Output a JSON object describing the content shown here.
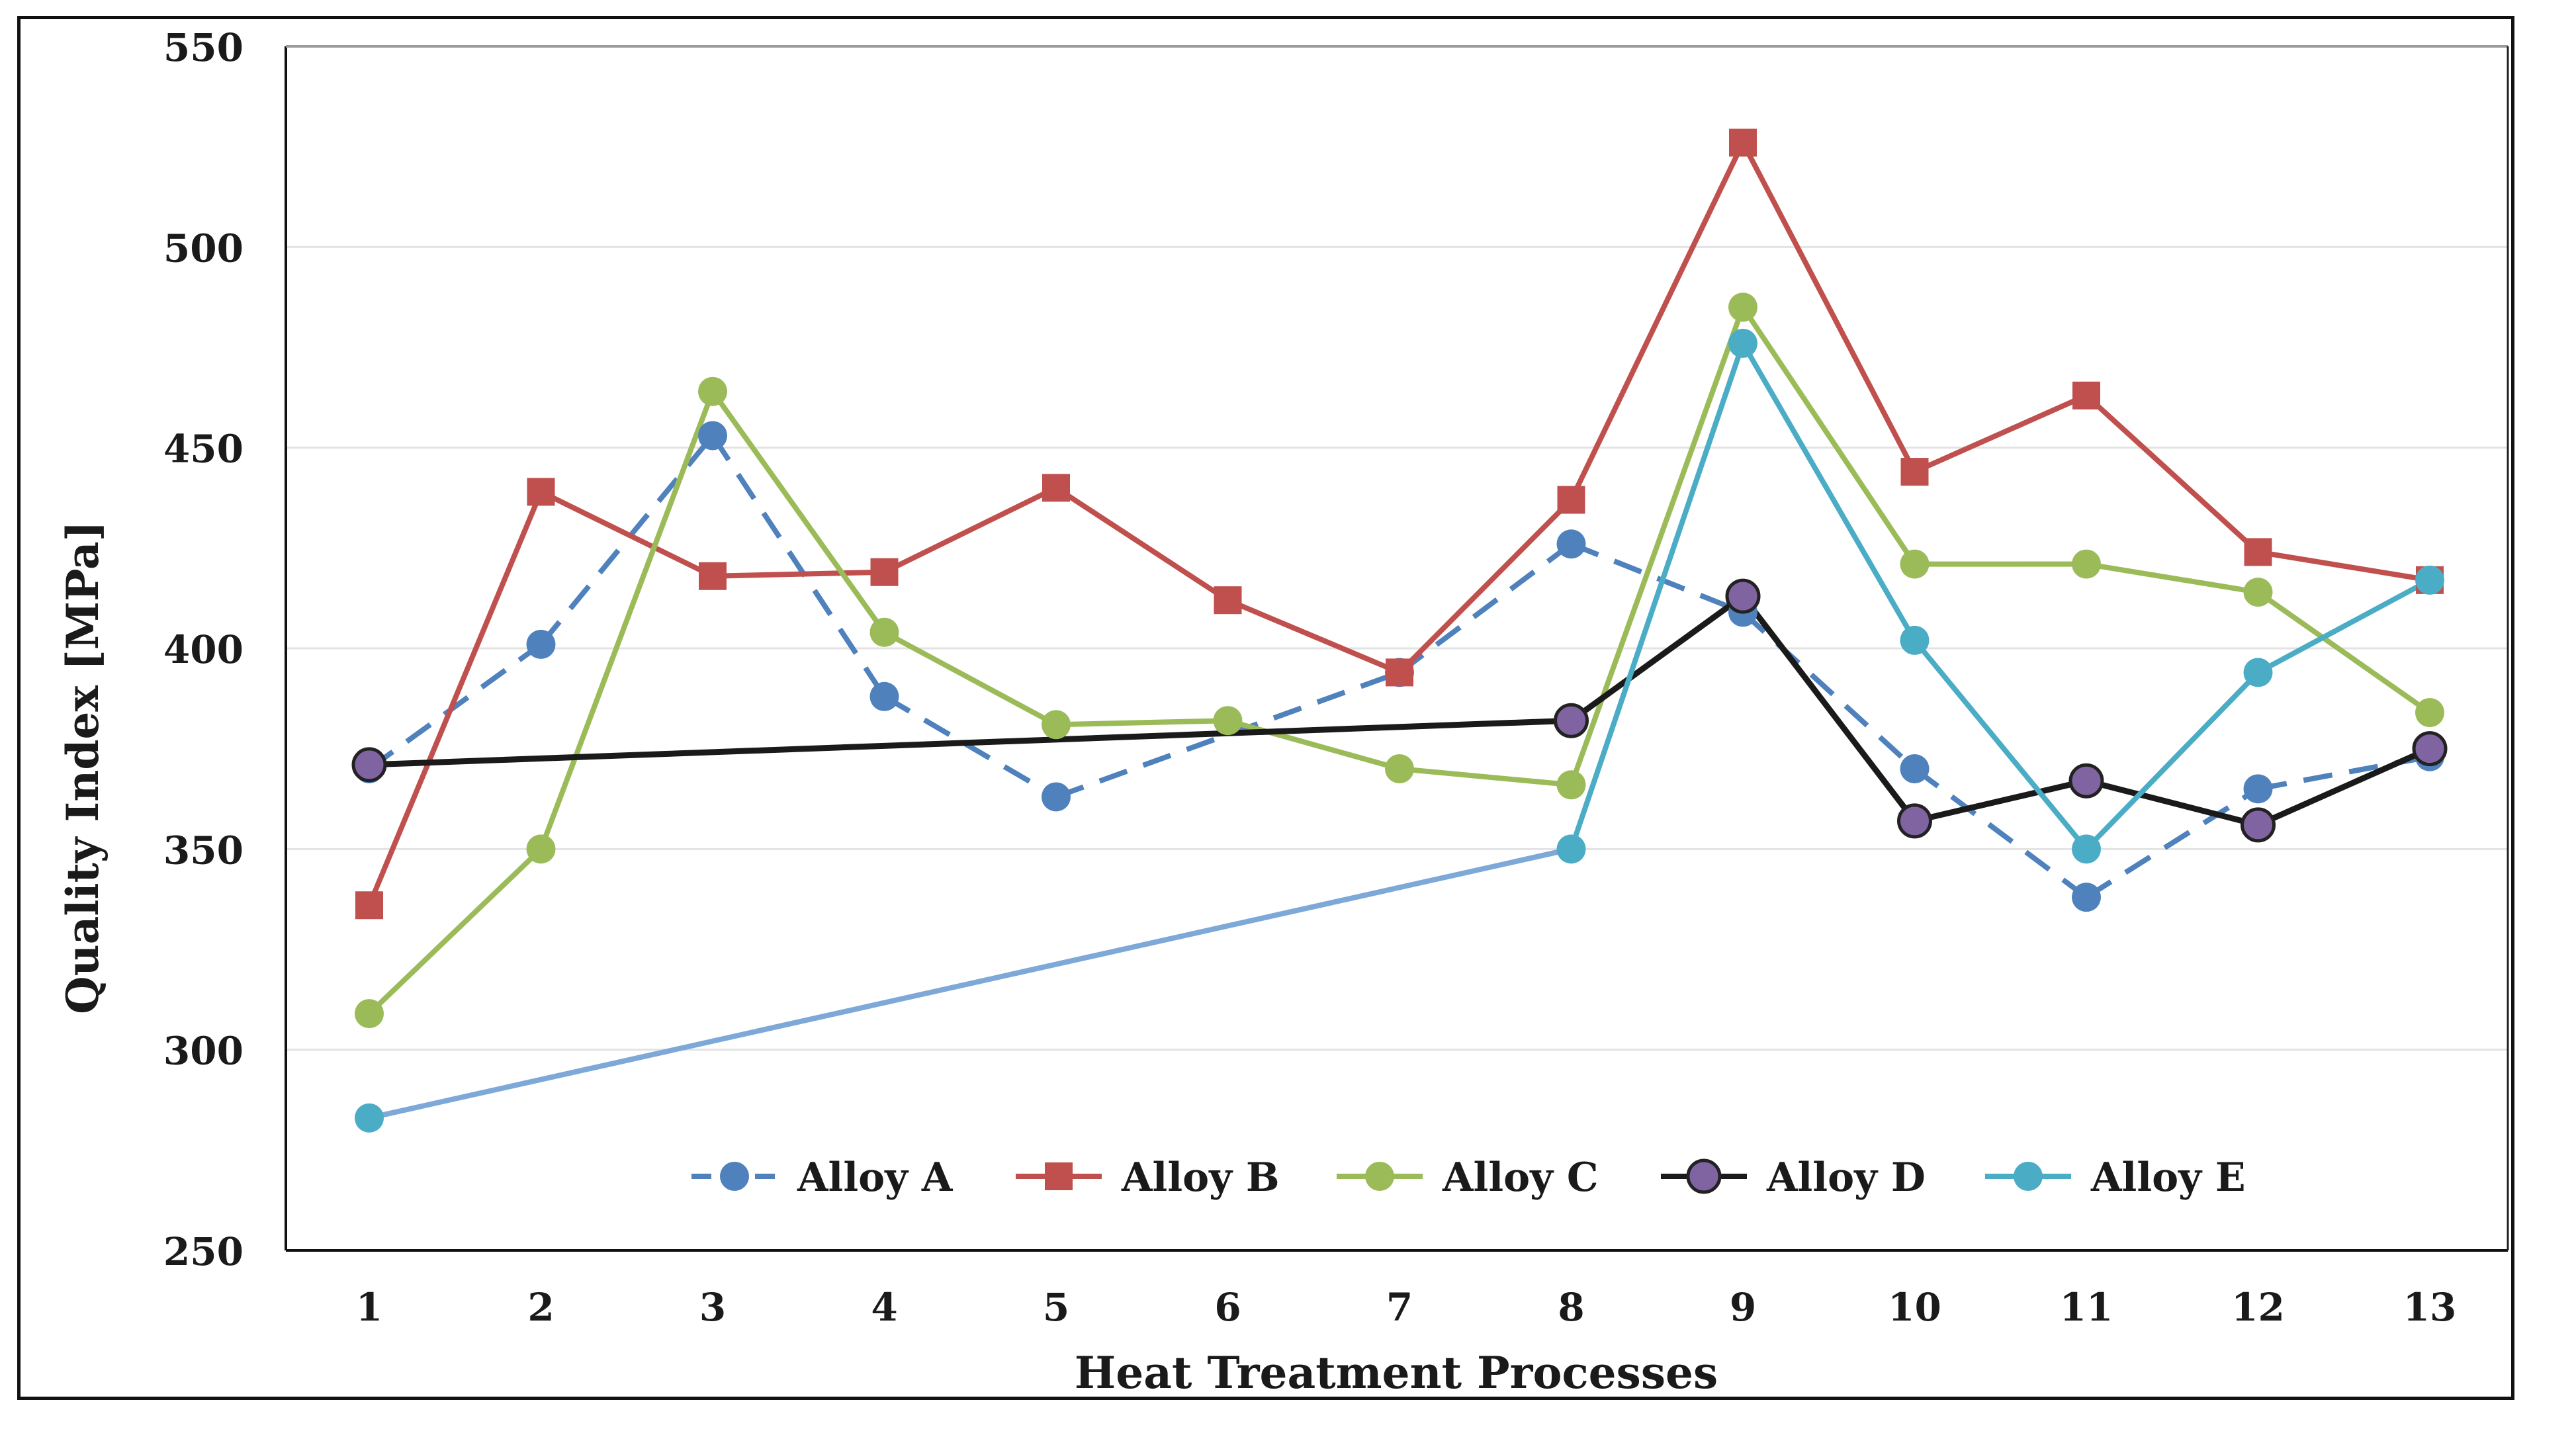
{
  "chart_data": {
    "type": "line",
    "title": "",
    "xlabel": "Heat Treatment Processes",
    "ylabel": "Quality Index [MPa]",
    "categories": [
      "1",
      "2",
      "3",
      "4",
      "5",
      "6",
      "7",
      "8",
      "9",
      "10",
      "11",
      "12",
      "13"
    ],
    "ylim": [
      250,
      550
    ],
    "yticks": [
      250,
      300,
      350,
      400,
      450,
      500,
      550
    ],
    "grid": true,
    "legend_position": "bottom-center",
    "series": [
      {
        "name": "Alloy A",
        "color": "#4f81bd",
        "dash": true,
        "marker": "circle",
        "points": [
          [
            1,
            370
          ],
          [
            2,
            401
          ],
          [
            3,
            453
          ],
          [
            4,
            388
          ],
          [
            5,
            363
          ],
          [
            6,
            null
          ],
          [
            7,
            394
          ],
          [
            8,
            426
          ],
          [
            9,
            409
          ],
          [
            10,
            370
          ],
          [
            11,
            338
          ],
          [
            12,
            365
          ],
          [
            13,
            373
          ]
        ]
      },
      {
        "name": "Alloy B",
        "color": "#c0504d",
        "dash": false,
        "marker": "square",
        "points": [
          [
            1,
            336
          ],
          [
            2,
            439
          ],
          [
            3,
            418
          ],
          [
            4,
            419
          ],
          [
            5,
            440
          ],
          [
            6,
            412
          ],
          [
            7,
            394
          ],
          [
            8,
            437
          ],
          [
            9,
            526
          ],
          [
            10,
            444
          ],
          [
            11,
            463
          ],
          [
            12,
            424
          ],
          [
            13,
            417
          ]
        ]
      },
      {
        "name": "Alloy C",
        "color": "#9bbb59",
        "dash": false,
        "marker": "circle",
        "points": [
          [
            1,
            309
          ],
          [
            2,
            350
          ],
          [
            3,
            464
          ],
          [
            4,
            404
          ],
          [
            5,
            381
          ],
          [
            6,
            382
          ],
          [
            7,
            370
          ],
          [
            8,
            366
          ],
          [
            9,
            485
          ],
          [
            10,
            421
          ],
          [
            11,
            421
          ],
          [
            12,
            414
          ],
          [
            13,
            384
          ]
        ]
      },
      {
        "name": "Alloy D",
        "color": "#1a1a1a",
        "marker_color": "#8064a2",
        "dash": false,
        "marker": "circle",
        "points": [
          [
            1,
            371
          ],
          [
            8,
            382
          ],
          [
            9,
            413
          ],
          [
            10,
            357
          ],
          [
            11,
            367
          ],
          [
            12,
            356
          ],
          [
            13,
            375
          ]
        ]
      },
      {
        "name": "Alloy E",
        "color": "#4bacc6",
        "early_color": "#7ea8d8",
        "dash": false,
        "marker": "circle",
        "points": [
          [
            1,
            283
          ],
          [
            8,
            350
          ],
          [
            9,
            476
          ],
          [
            10,
            402
          ],
          [
            11,
            350
          ],
          [
            12,
            394
          ],
          [
            13,
            417
          ]
        ]
      }
    ]
  }
}
